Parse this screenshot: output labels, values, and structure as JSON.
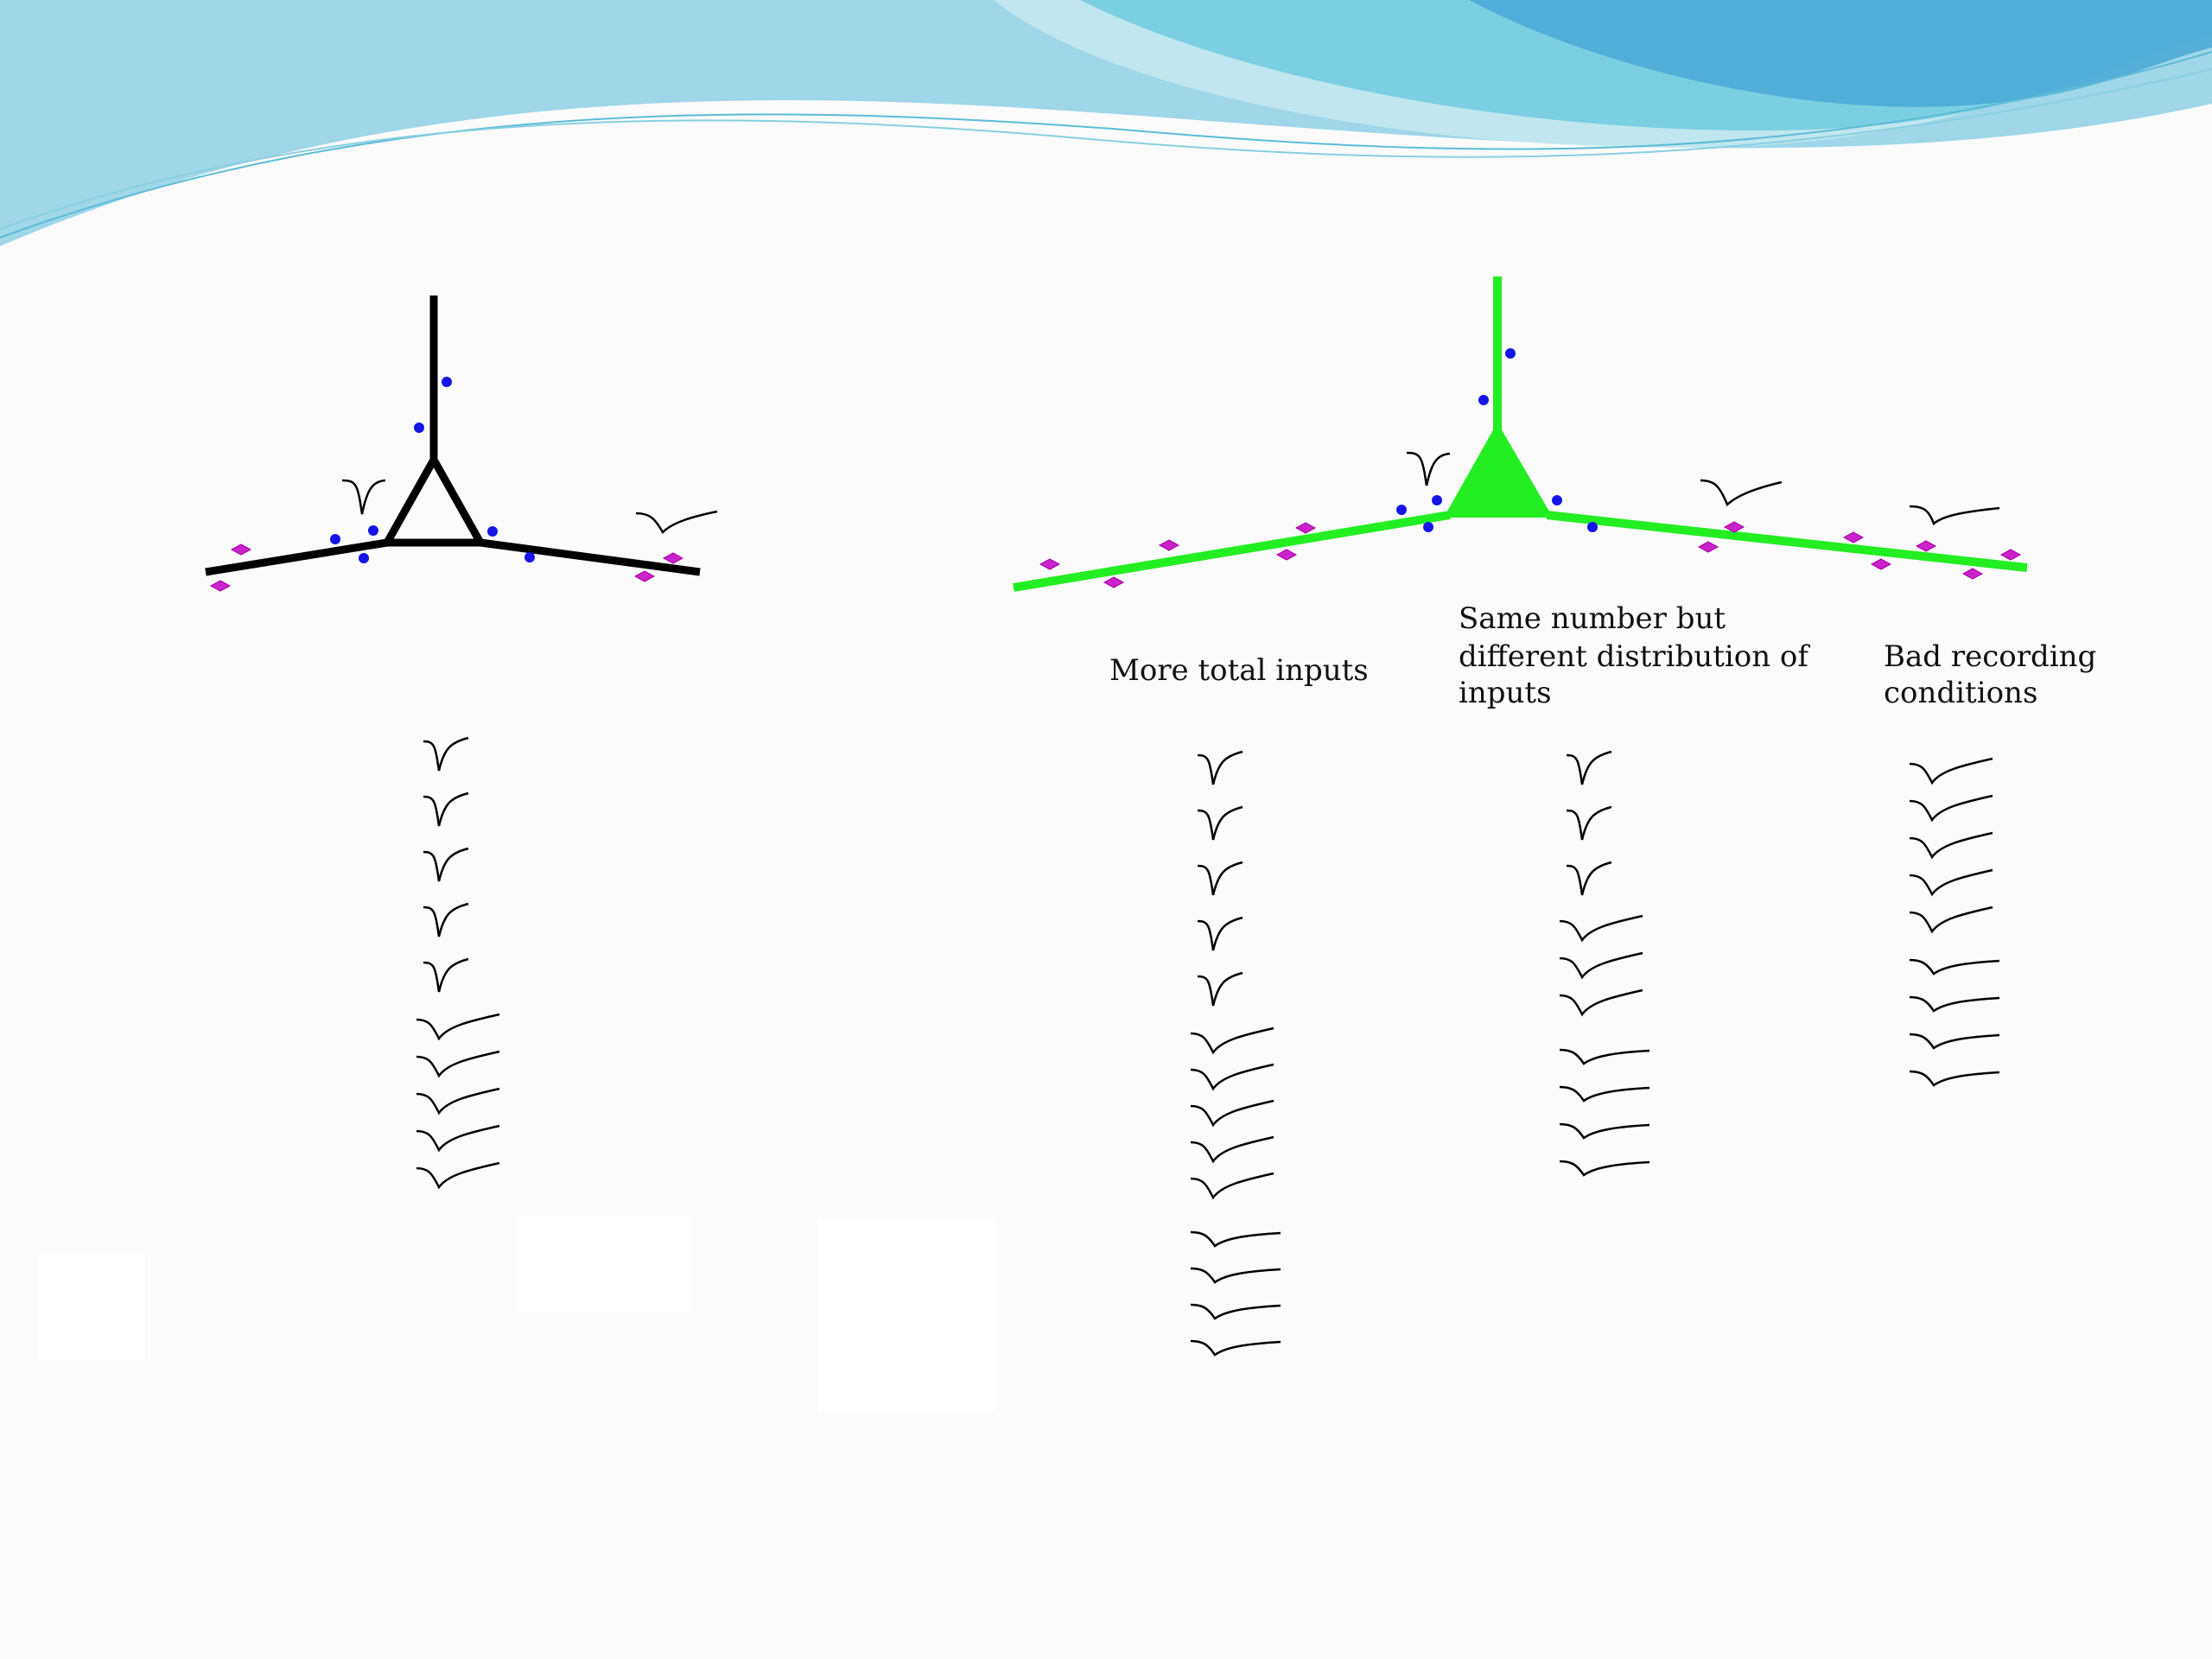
{
  "labels": {
    "more_total_inputs": "More total inputs",
    "same_number_line1": "Same number but",
    "same_number_line2": "different distribution of",
    "same_number_line3": "inputs",
    "bad_recording_line1": "Bad recording",
    "bad_recording_line2": "conditions"
  },
  "colors": {
    "header_wave_light": "#bfe8ee",
    "header_wave_mid": "#7fcfe0",
    "header_wave_dark": "#4aa8d6",
    "neuron_control": "#000000",
    "neuron_test": "#22ee22",
    "blue_synapse": "#1515e8",
    "magenta_synapse": "#cc22cc",
    "trace": "#000000"
  },
  "trace_columns": [
    {
      "column": "control",
      "fast_count": 5,
      "slow_count": 5
    },
    {
      "column": "more-total-inputs",
      "fast_count": 5,
      "slow_count": 9
    },
    {
      "column": "different-distribution",
      "fast_count": 3,
      "slow_count": 7
    },
    {
      "column": "bad-recording",
      "fast_count": 5,
      "slow_count": 4
    }
  ]
}
